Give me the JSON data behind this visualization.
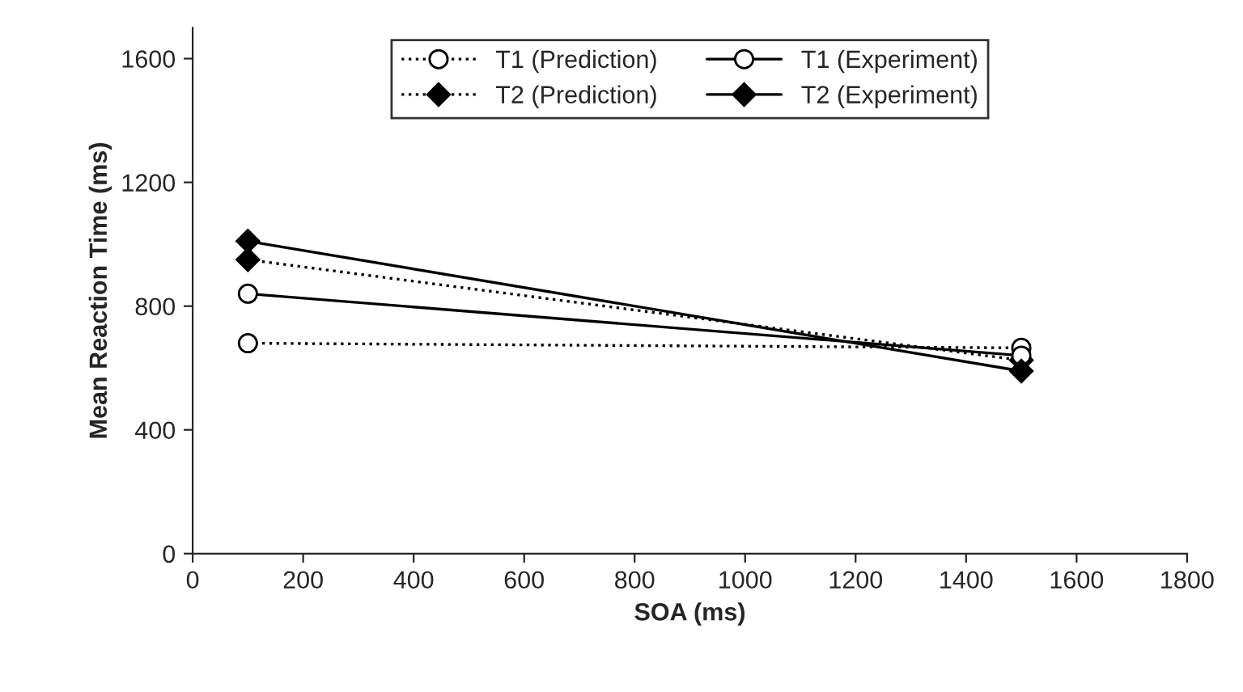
{
  "chart_data": {
    "type": "line",
    "xlabel": "SOA (ms)",
    "ylabel": "Mean Reaction Time (ms)",
    "x": [
      100,
      1500
    ],
    "series": [
      {
        "name": "T1 (Prediction)",
        "color": "#000000",
        "values": [
          680,
          665
        ],
        "marker": "circle",
        "line_style": "dotted"
      },
      {
        "name": "T2 (Prediction)",
        "color": "#000000",
        "values": [
          950,
          625
        ],
        "marker": "diamond",
        "line_style": "dotted"
      },
      {
        "name": "T1 (Experiment)",
        "color": "#000000",
        "values": [
          840,
          640
        ],
        "marker": "circle",
        "line_style": "solid"
      },
      {
        "name": "T2 (Experiment)",
        "color": "#000000",
        "values": [
          1010,
          590
        ],
        "marker": "diamond",
        "line_style": "solid"
      }
    ],
    "xlim": [
      0,
      1800
    ],
    "xticks": [
      0,
      200,
      400,
      600,
      800,
      1000,
      1200,
      1400,
      1600,
      1800
    ],
    "ylim": [
      0,
      1700
    ],
    "yticks": [
      0,
      400,
      800,
      1200,
      1600
    ],
    "legend": "top"
  }
}
